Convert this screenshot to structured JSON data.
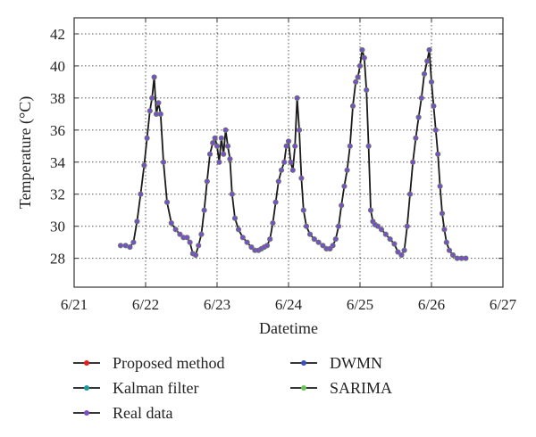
{
  "chart_data": {
    "type": "line",
    "title": "",
    "xlabel": "Datetime",
    "ylabel": "Temperature (°C)",
    "x_ticks": [
      {
        "value": 21,
        "label": "6/21"
      },
      {
        "value": 22,
        "label": "6/22"
      },
      {
        "value": 23,
        "label": "6/23"
      },
      {
        "value": 24,
        "label": "6/24"
      },
      {
        "value": 25,
        "label": "6/25"
      },
      {
        "value": 26,
        "label": "6/26"
      },
      {
        "value": 27,
        "label": "6/27"
      }
    ],
    "y_ticks": [
      28,
      30,
      32,
      34,
      36,
      38,
      40,
      42
    ],
    "xlim": [
      21,
      27
    ],
    "ylim": [
      26.2,
      43
    ],
    "grid": true,
    "legend": {
      "placement": "bottom",
      "entries": [
        {
          "name": "Proposed method",
          "color": "#e02020"
        },
        {
          "name": "DWMN",
          "color": "#3a4fb8"
        },
        {
          "name": "Kalman filter",
          "color": "#1f9a9a"
        },
        {
          "name": "SARIMA",
          "color": "#6ec45a"
        },
        {
          "name": "Real data",
          "color": "#7b4fc4"
        }
      ]
    },
    "series": [
      {
        "name": "Real data",
        "x": [
          21.65,
          21.72,
          21.78,
          21.83,
          21.88,
          21.93,
          21.98,
          22.02,
          22.06,
          22.09,
          22.12,
          22.15,
          22.18,
          22.21,
          22.25,
          22.3,
          22.36,
          22.42,
          22.48,
          22.53,
          22.58,
          22.62,
          22.66,
          22.7,
          22.74,
          22.78,
          22.82,
          22.86,
          22.9,
          22.94,
          22.97,
          23.0,
          23.03,
          23.06,
          23.09,
          23.12,
          23.15,
          23.18,
          23.21,
          23.25,
          23.3,
          23.36,
          23.42,
          23.48,
          23.53,
          23.58,
          23.62,
          23.66,
          23.7,
          23.74,
          23.78,
          23.82,
          23.86,
          23.9,
          23.94,
          23.97,
          24.0,
          24.03,
          24.06,
          24.09,
          24.12,
          24.15,
          24.18,
          24.21,
          24.25,
          24.3,
          24.36,
          24.42,
          24.48,
          24.53,
          24.58,
          24.62,
          24.66,
          24.7,
          24.74,
          24.78,
          24.82,
          24.86,
          24.9,
          24.94,
          24.97,
          25.0,
          25.03,
          25.06,
          25.09,
          25.12,
          25.15,
          25.18,
          25.21,
          25.25,
          25.3,
          25.36,
          25.42,
          25.48,
          25.53,
          25.58,
          25.62,
          25.66,
          25.7,
          25.74,
          25.78,
          25.82,
          25.86,
          25.9,
          25.94,
          25.97,
          26.0,
          26.03,
          26.06,
          26.09,
          26.12,
          26.15,
          26.18,
          26.21,
          26.25,
          26.3,
          26.36,
          26.42,
          26.48
        ],
        "y": [
          28.8,
          28.8,
          28.7,
          29.0,
          30.3,
          32.0,
          33.8,
          35.5,
          37.2,
          38.0,
          39.3,
          37.0,
          37.7,
          37.0,
          34.0,
          31.5,
          30.2,
          29.8,
          29.5,
          29.3,
          29.3,
          29.0,
          28.3,
          28.2,
          28.8,
          29.5,
          31.0,
          32.8,
          34.5,
          35.2,
          35.5,
          35.0,
          34.0,
          35.5,
          34.5,
          36.0,
          35.0,
          34.2,
          32.0,
          30.5,
          29.8,
          29.3,
          29.0,
          28.7,
          28.5,
          28.5,
          28.6,
          28.7,
          28.8,
          29.2,
          30.2,
          31.5,
          32.8,
          33.5,
          34.0,
          35.0,
          35.3,
          34.0,
          33.5,
          35.0,
          38.0,
          36.0,
          33.0,
          31.0,
          30.0,
          29.5,
          29.2,
          29.0,
          28.8,
          28.6,
          28.6,
          28.8,
          29.2,
          30.0,
          31.3,
          32.5,
          33.5,
          35.0,
          37.5,
          39.0,
          39.3,
          40.0,
          41.0,
          40.5,
          38.5,
          35.0,
          31.0,
          30.3,
          30.1,
          30.0,
          29.8,
          29.5,
          29.2,
          28.9,
          28.4,
          28.2,
          28.5,
          30.0,
          32.0,
          34.0,
          35.5,
          36.8,
          38.0,
          39.5,
          40.3,
          41.0,
          39.0,
          37.5,
          36.0,
          34.5,
          32.5,
          30.8,
          29.8,
          29.0,
          28.5,
          28.2,
          28.0,
          28.0,
          28.0
        ]
      }
    ]
  }
}
